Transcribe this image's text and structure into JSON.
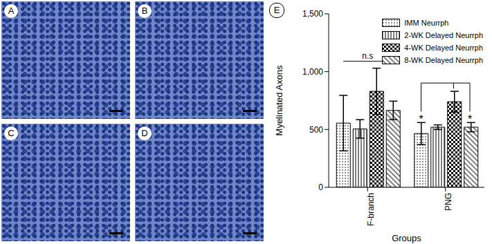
{
  "panels": [
    {
      "label": "A"
    },
    {
      "label": "B"
    },
    {
      "label": "C"
    },
    {
      "label": "D"
    }
  ],
  "chart_data": {
    "type": "bar",
    "panel_label": "E",
    "x_label": "Groups",
    "y_label": "Myelinated Axons",
    "categories": [
      "F-branch",
      "PNG"
    ],
    "series": [
      {
        "name": "IMM Neurrph",
        "color": "#000000",
        "values": [
          555,
          465
        ],
        "errors": [
          240,
          95
        ]
      },
      {
        "name": "2-WK Delayed Neurrph",
        "color": "#000000",
        "values": [
          505,
          520
        ],
        "errors": [
          80,
          20
        ]
      },
      {
        "name": "4-WK Delayed Neurrph",
        "color": "#000000",
        "values": [
          830,
          740
        ],
        "errors": [
          200,
          90
        ]
      },
      {
        "name": "8-WK Delayed Neurrph",
        "color": "#000000",
        "values": [
          665,
          520
        ],
        "errors": [
          80,
          40
        ]
      }
    ],
    "ylim": [
      0,
      1500
    ],
    "yticks": [
      0,
      500,
      {
        "value": 1000,
        "label": "1,000"
      },
      {
        "value": 1500,
        "label": "1,500"
      }
    ],
    "legend": "upper right",
    "annotations": [
      {
        "text": "n.s",
        "category": "F-branch"
      },
      {
        "text": "*",
        "category": "PNG",
        "series": "IMM Neurrph"
      },
      {
        "text": "*",
        "category": "PNG",
        "series": "8-WK Delayed Neurrph"
      }
    ]
  }
}
